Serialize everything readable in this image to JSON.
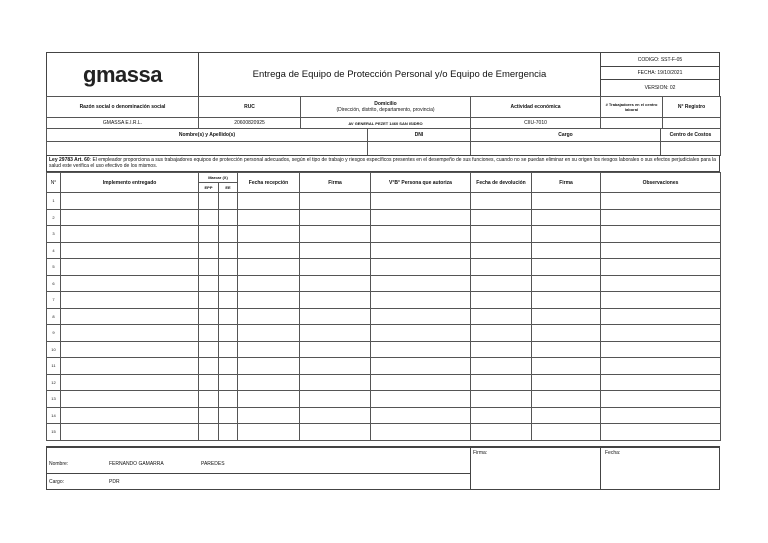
{
  "header": {
    "logo": "gmassa",
    "title": "Entrega de Equipo de Protección Personal y/o Equipo de Emergencia",
    "codigo": "CODIGO: SST-F-05",
    "fecha": "FECHA: 19/10/2021",
    "version": "VERSION: 02"
  },
  "company": {
    "labels": {
      "razon": "Razón social o denominación social",
      "ruc": "RUC",
      "domicilio": "Domicilio",
      "domicilio_sub": "(Dirección, distrito, departamento, provincia)",
      "actividad": "Actividad económica",
      "trabajadores": "# Trabajadores en el centro laboral",
      "registro": "N° Registro"
    },
    "values": {
      "razon": "GMASSA E.I.R.L.",
      "ruc": "20600820925",
      "domicilio": "AV GENERAL PEZET 1460 SAN ISIDRO",
      "actividad": "CIIU-7010",
      "trabajadores": "",
      "registro": ""
    }
  },
  "worker": {
    "labels": {
      "nombre": "Nombre(s) y Apellido(s)",
      "dni": "DNI",
      "cargo": "Cargo",
      "centro": "Centro de Costos"
    }
  },
  "law": {
    "ref": "Ley 29783 Art. 60",
    "text": ": El empleador proporciona a sus trabajadores equipos de protección personal adecuados, según el tipo de trabajo y riesgos específicos presentes en el desempeño de sus funciones, cuando no se puedan eliminar en su origen los riesgos laborales o sus efectos perjudiciales para la salud este verifica el uso efectivo de los mismos."
  },
  "table": {
    "headers": {
      "n": "N°",
      "implemento": "Implemento entregado",
      "marcar": "Marcar (X)",
      "epp": "EPP",
      "ee": "EE",
      "recepcion": "Fecha recepción",
      "firma": "Firma",
      "vb": "V°B° Persona que autoriza",
      "devolucion": "Fecha de devolución",
      "firma2": "Firma",
      "observaciones": "Observaciones"
    },
    "rows": [
      "1",
      "2",
      "3",
      "4",
      "5",
      "6",
      "7",
      "8",
      "9",
      "10",
      "11",
      "12",
      "13",
      "14",
      "15"
    ]
  },
  "footer": {
    "nombre_label": "Nombre:",
    "nombre": "FERNANDO GAMARRA",
    "apellido": "PAREDES",
    "cargo_label": "Cargo:",
    "cargo": "PDR",
    "firma_label": "Firma:",
    "fecha_label": "Fecha:"
  }
}
